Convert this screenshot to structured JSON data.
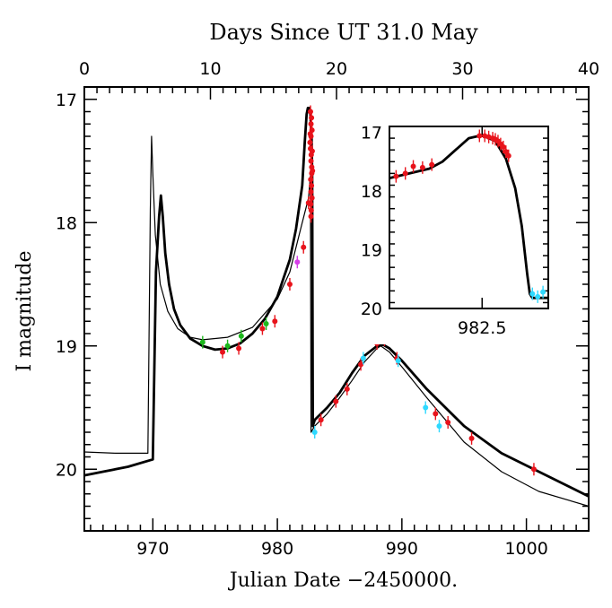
{
  "chart_data": {
    "type": "scatter",
    "title": "Days Since UT 31.0 May",
    "xlabel": "Julian Date −2450000.",
    "ylabel": "I magnitude",
    "xlim": [
      964.5,
      1005
    ],
    "ylim": [
      20.5,
      16.9
    ],
    "top_xlim": [
      0,
      40
    ],
    "x_ticks": [
      970,
      980,
      990,
      1000
    ],
    "x_ticklabels": [
      "970",
      "980",
      "990",
      "1000"
    ],
    "y_ticks": [
      17,
      18,
      19,
      20
    ],
    "y_ticklabels": [
      "17",
      "18",
      "19",
      "20"
    ],
    "top_ticks": [
      0,
      10,
      20,
      30,
      40
    ],
    "top_ticklabels": [
      "0",
      "10",
      "20",
      "30",
      "40"
    ],
    "colors": {
      "red": "#e8131b",
      "green": "#1db81d",
      "cyan": "#2ed9ff",
      "magenta": "#d63fe8",
      "line": "#000000"
    },
    "model_thick": {
      "name": "model fit (thick)",
      "x": [
        964.5,
        966,
        968,
        970,
        970.25,
        970.5,
        970.65,
        970.8,
        971,
        971.3,
        971.7,
        972.2,
        973,
        974,
        975,
        976,
        977,
        978,
        979,
        980,
        980.5,
        981,
        981.5,
        982,
        982.2,
        982.35,
        982.45,
        982.55,
        982.65,
        982.75,
        982.8,
        982.85,
        983,
        984,
        985,
        986,
        987,
        988,
        988.5,
        989,
        990,
        992,
        995,
        998,
        1001,
        1005
      ],
      "y": [
        20.05,
        20.02,
        19.98,
        19.92,
        18.4,
        17.95,
        17.78,
        17.95,
        18.25,
        18.5,
        18.7,
        18.83,
        18.94,
        19.0,
        19.03,
        19.02,
        18.98,
        18.9,
        18.78,
        18.6,
        18.45,
        18.3,
        18.05,
        17.7,
        17.35,
        17.12,
        17.07,
        17.07,
        17.12,
        17.3,
        17.6,
        19.65,
        19.6,
        19.5,
        19.38,
        19.22,
        19.08,
        19.0,
        18.99,
        19.02,
        19.12,
        19.35,
        19.65,
        19.87,
        20.02,
        20.22
      ]
    },
    "model_thin": {
      "name": "model fit (thin)",
      "x": [
        964.5,
        967,
        969.6,
        969.8,
        969.9,
        970.0,
        970.2,
        970.6,
        971.2,
        972,
        973,
        974,
        976,
        978,
        980,
        981,
        982,
        982.5,
        982.65,
        982.7,
        983,
        984,
        985,
        986,
        987,
        988,
        988.3,
        989,
        990,
        992,
        995,
        998,
        1001,
        1005
      ],
      "y": [
        19.86,
        19.87,
        19.87,
        17.9,
        17.3,
        17.6,
        18.1,
        18.5,
        18.72,
        18.86,
        18.93,
        18.95,
        18.93,
        18.85,
        18.62,
        18.4,
        18.0,
        17.8,
        17.62,
        19.7,
        19.65,
        19.55,
        19.42,
        19.28,
        19.13,
        19.02,
        19.0,
        19.05,
        19.17,
        19.42,
        19.78,
        20.02,
        20.18,
        20.3
      ]
    },
    "series": [
      {
        "name": "red points",
        "color": "red",
        "points": [
          [
            975.6,
            19.05
          ],
          [
            976.9,
            19.02
          ],
          [
            978.8,
            18.86
          ],
          [
            979.8,
            18.8
          ],
          [
            981.0,
            18.5
          ],
          [
            982.1,
            18.2
          ],
          [
            982.5,
            17.84
          ],
          [
            983.5,
            19.6
          ],
          [
            984.7,
            19.45
          ],
          [
            985.6,
            19.35
          ],
          [
            986.7,
            19.15
          ],
          [
            988.0,
            18.98
          ],
          [
            988.6,
            18.95
          ],
          [
            989.6,
            19.1
          ],
          [
            992.7,
            19.55
          ],
          [
            993.7,
            19.62
          ],
          [
            995.6,
            19.75
          ],
          [
            1000.6,
            20.0
          ],
          [
            982.66,
            17.1
          ],
          [
            982.7,
            17.2
          ],
          [
            982.74,
            17.15
          ],
          [
            982.7,
            17.3
          ],
          [
            982.78,
            17.25
          ],
          [
            982.66,
            17.4
          ],
          [
            982.72,
            17.45
          ],
          [
            982.7,
            17.5
          ],
          [
            982.76,
            17.6
          ],
          [
            982.68,
            17.65
          ],
          [
            982.74,
            17.7
          ],
          [
            982.7,
            17.75
          ],
          [
            982.78,
            17.8
          ],
          [
            982.68,
            17.85
          ],
          [
            982.72,
            17.9
          ],
          [
            982.7,
            17.95
          ],
          [
            982.76,
            17.55
          ],
          [
            982.62,
            17.35
          ],
          [
            982.8,
            17.42
          ],
          [
            982.64,
            17.28
          ],
          [
            982.82,
            17.58
          ]
        ]
      },
      {
        "name": "green points",
        "color": "green",
        "points": [
          [
            974.0,
            18.97
          ],
          [
            976.0,
            19.0
          ],
          [
            977.1,
            18.92
          ],
          [
            979.1,
            18.82
          ]
        ]
      },
      {
        "name": "cyan points",
        "color": "cyan",
        "points": [
          [
            983.0,
            19.7
          ],
          [
            986.9,
            19.1
          ],
          [
            989.7,
            19.12
          ],
          [
            991.9,
            19.5
          ],
          [
            993.0,
            19.65
          ]
        ]
      },
      {
        "name": "magenta points",
        "color": "magenta",
        "points": [
          [
            981.6,
            18.32
          ]
        ]
      }
    ],
    "inset": {
      "xlabel_tick": "982.5",
      "x_tick": 982.5,
      "xlim": [
        981.8,
        983.0
      ],
      "ylim": [
        20.0,
        16.9
      ],
      "y_ticks": [
        17,
        18,
        19,
        20
      ],
      "y_ticklabels": [
        "17",
        "18",
        "19",
        "20"
      ],
      "model": {
        "x": [
          981.8,
          981.95,
          982.1,
          982.2,
          982.3,
          982.4,
          982.5,
          982.6,
          982.68,
          982.75,
          982.8,
          982.84,
          982.86,
          982.88,
          983.0
        ],
        "y": [
          17.78,
          17.7,
          17.62,
          17.5,
          17.3,
          17.1,
          17.05,
          17.15,
          17.45,
          17.95,
          18.6,
          19.4,
          19.75,
          19.82,
          19.82
        ]
      },
      "red_points": [
        [
          981.85,
          17.75
        ],
        [
          981.92,
          17.7
        ],
        [
          981.98,
          17.58
        ],
        [
          982.05,
          17.6
        ],
        [
          982.12,
          17.55
        ],
        [
          982.48,
          17.06
        ],
        [
          982.52,
          17.06
        ],
        [
          982.55,
          17.08
        ],
        [
          982.58,
          17.1
        ],
        [
          982.6,
          17.12
        ],
        [
          982.62,
          17.15
        ],
        [
          982.64,
          17.2
        ],
        [
          982.66,
          17.25
        ],
        [
          982.68,
          17.33
        ],
        [
          982.7,
          17.4
        ]
      ],
      "cyan_points": [
        [
          982.88,
          19.75
        ],
        [
          982.92,
          19.8
        ],
        [
          982.96,
          19.72
        ]
      ]
    }
  }
}
